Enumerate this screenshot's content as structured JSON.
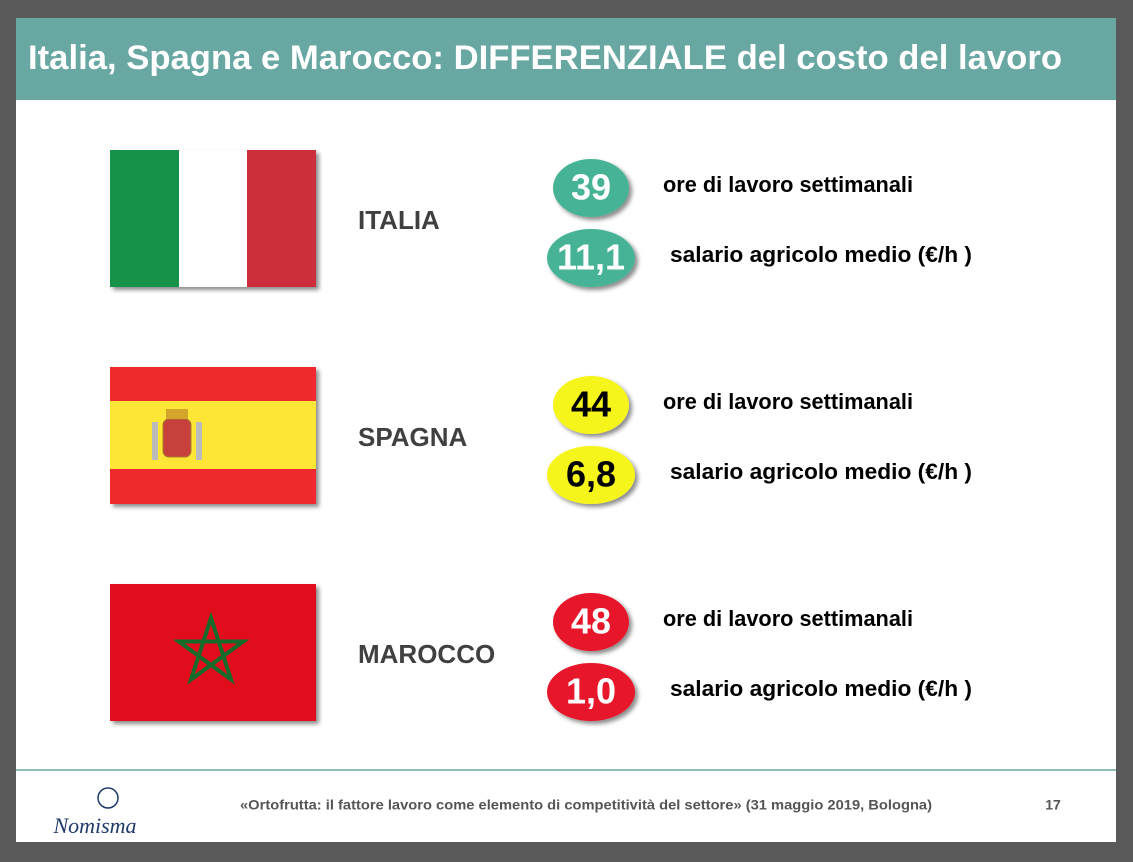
{
  "header": {
    "title": "Italia, Spagna e Marocco: DIFFERENZIALE del costo del lavoro"
  },
  "rows": [
    {
      "name": "ITALIA",
      "items": [
        {
          "value": "39",
          "label": "ore di lavoro settimanali"
        },
        {
          "value": "11,1",
          "label": "salario agricolo medio (€/h )"
        }
      ]
    },
    {
      "name": "SPAGNA",
      "items": [
        {
          "value": "44",
          "label": "ore di lavoro settimanali"
        },
        {
          "value": "6,8",
          "label": "salario agricolo medio (€/h )"
        }
      ]
    },
    {
      "name": "MAROCCO",
      "items": [
        {
          "value": "48",
          "label": "ore di lavoro settimanali"
        },
        {
          "value": "1,0",
          "label": "salario agricolo medio (€/h )"
        }
      ]
    }
  ],
  "footer": {
    "logo": "Nomisma",
    "citation": "«Ortofrutta: il fattore lavoro come elemento di competitività del settore» (31 maggio 2019, Bologna)",
    "page": "17"
  }
}
